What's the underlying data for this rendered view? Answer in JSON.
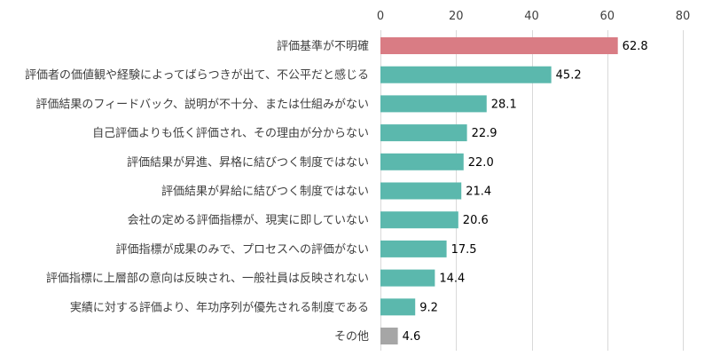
{
  "chart_data": {
    "type": "bar",
    "orientation": "horizontal",
    "xlim": [
      0,
      80
    ],
    "x_ticks": [
      "0",
      "20",
      "40",
      "60",
      "80"
    ],
    "x_axis_position": "top",
    "grid": true,
    "categories": [
      "評価基準が不明確",
      "評価者の価値観や経験によってばらつきが出て、不公平だと感じる",
      "評価結果のフィードバック、説明が不十分、または仕組みがない",
      "自己評価よりも低く評価され、その理由が分からない",
      "評価結果が昇進、昇格に結びつく制度ではない",
      "評価結果が昇給に結びつく制度ではない",
      "会社の定める評価指標が、現実に即していない",
      "評価指標が成果のみで、プロセスへの評価がない",
      "評価指標に上層部の意向は反映され、一般社員は反映されない",
      "実績に対する評価より、年功序列が優先される制度である",
      "その他"
    ],
    "values": [
      62.8,
      45.2,
      28.1,
      22.9,
      22.0,
      21.4,
      20.6,
      17.5,
      14.4,
      9.2,
      4.6
    ],
    "value_labels": [
      "62.8",
      "45.2",
      "28.1",
      "22.9",
      "22.0",
      "21.4",
      "20.6",
      "17.5",
      "14.4",
      "9.2",
      "4.6"
    ],
    "colors": {
      "highlight": "#d97c84",
      "default": "#5bb8ad",
      "other": "#a6a6a6"
    }
  }
}
